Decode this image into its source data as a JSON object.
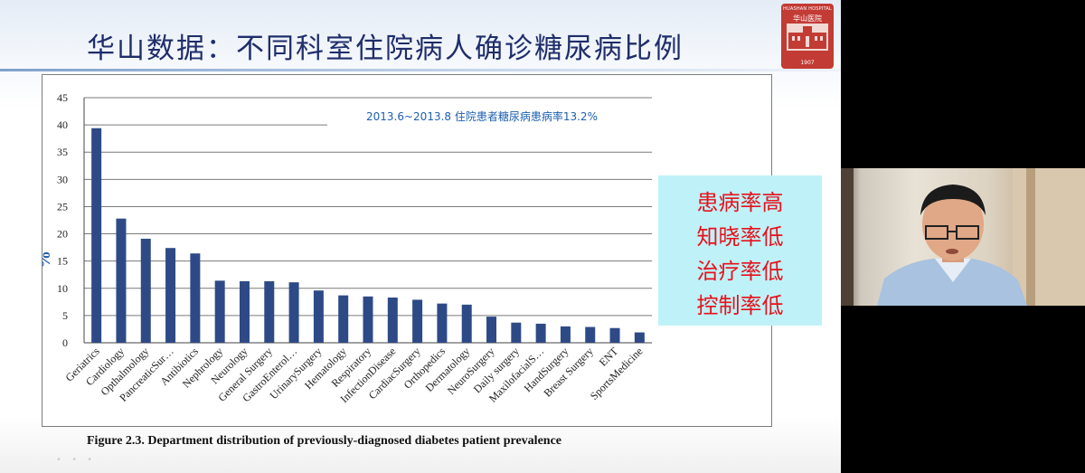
{
  "slide": {
    "title": "华山数据：不同科室住院病人确诊糖尿病比例",
    "logo": {
      "name": "HUASHAN HOSPITAL",
      "chinese": "华山医院",
      "year": "1907"
    },
    "caption": "Figure 2.3. Department distribution of previously-diagnosed diabetes patient prevalence",
    "note_lines": [
      "患病率高",
      "知晓率低",
      "治疗率低",
      "控制率低"
    ],
    "controls": "• • •"
  },
  "colors": {
    "bar": "#2e4a86",
    "title": "#1f2d6b",
    "annotation": "#1d5fb0",
    "note_text": "#e8111b",
    "note_bg": "#bff2f8"
  },
  "chart_data": {
    "type": "bar",
    "title": "",
    "annotation": "2013.6~2013.8 住院患者糖尿病患病率13.2%",
    "xlabel": "",
    "ylabel": "%",
    "ylim": [
      0,
      45
    ],
    "yticks": [
      0,
      5,
      10,
      15,
      20,
      25,
      30,
      35,
      40,
      45
    ],
    "grid": true,
    "categories": [
      "Geriatrics",
      "Cardiology",
      "Opthalmology",
      "PancreaticSur…",
      "Antibiotics",
      "Nephrology",
      "Neurology",
      "General Surgery",
      "GastroEnterol…",
      "UrinarySurgery",
      "Hematology",
      "Respiratory",
      "InfectionDisease",
      "CardiacSurgery",
      "Orthopedics",
      "Dermatology",
      "NeuroSurgery",
      "Daily surgery",
      "MaxilofacialS…",
      "HandSurgery",
      "Breast Surgery",
      "ENT",
      "SportsMedicine"
    ],
    "values": [
      39.4,
      22.8,
      19.1,
      17.4,
      16.4,
      11.4,
      11.3,
      11.3,
      11.1,
      9.6,
      8.7,
      8.5,
      8.3,
      7.9,
      7.2,
      7.0,
      4.8,
      3.7,
      3.5,
      3.0,
      2.9,
      2.7,
      1.9
    ]
  }
}
